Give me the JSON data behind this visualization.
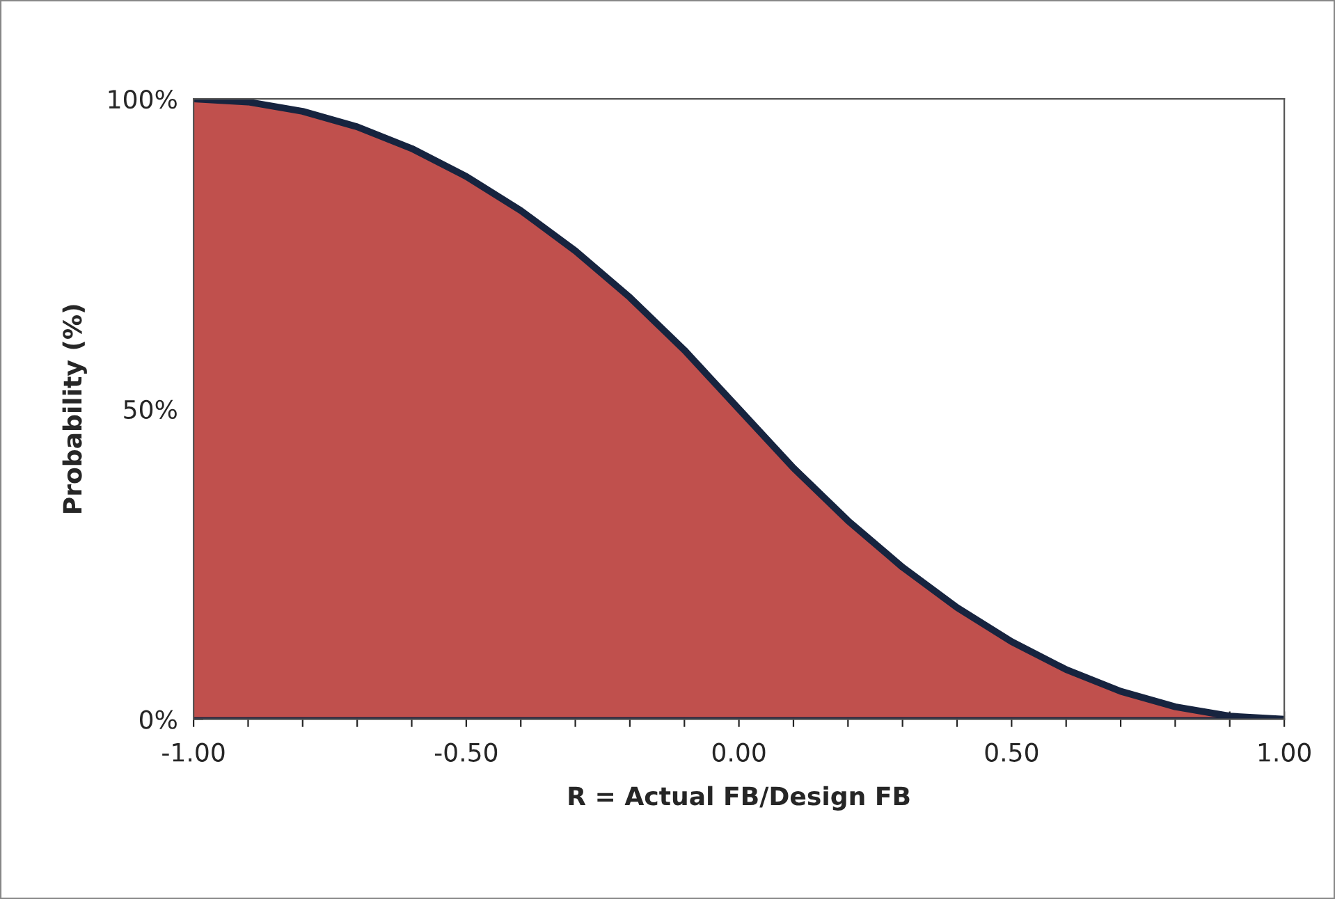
{
  "chart_data": {
    "type": "area",
    "xlabel": "R = Actual FB/Design FB",
    "ylabel": "Probability (%)",
    "x": [
      -1.0,
      -0.9,
      -0.8,
      -0.7,
      -0.6,
      -0.5,
      -0.4,
      -0.3,
      -0.2,
      -0.1,
      0.0,
      0.1,
      0.2,
      0.3,
      0.4,
      0.5,
      0.6,
      0.7,
      0.8,
      0.9,
      1.0
    ],
    "series": [
      {
        "color": "#c0504d",
        "values": [
          100,
          99.5,
          98,
          95.5,
          92,
          87.5,
          82,
          75.5,
          68,
          59.5,
          50,
          40.5,
          32,
          24.5,
          18,
          12.5,
          8,
          4.5,
          2,
          0.5,
          0
        ]
      }
    ],
    "xlim": [
      -1.0,
      1.0
    ],
    "xticks": [
      {
        "value": -1.0,
        "label": "-1.00"
      },
      {
        "value": -0.9,
        "label": null
      },
      {
        "value": -0.8,
        "label": null
      },
      {
        "value": -0.7,
        "label": null
      },
      {
        "value": -0.6,
        "label": null
      },
      {
        "value": -0.5,
        "label": "-0.50"
      },
      {
        "value": -0.4,
        "label": null
      },
      {
        "value": -0.3,
        "label": null
      },
      {
        "value": -0.2,
        "label": null
      },
      {
        "value": -0.1,
        "label": null
      },
      {
        "value": 0.0,
        "label": "0.00"
      },
      {
        "value": 0.1,
        "label": null
      },
      {
        "value": 0.2,
        "label": null
      },
      {
        "value": 0.3,
        "label": null
      },
      {
        "value": 0.4,
        "label": null
      },
      {
        "value": 0.5,
        "label": "0.50"
      },
      {
        "value": 0.6,
        "label": null
      },
      {
        "value": 0.7,
        "label": null
      },
      {
        "value": 0.8,
        "label": null
      },
      {
        "value": 0.9,
        "label": null
      },
      {
        "value": 1.0,
        "label": "1.00"
      }
    ],
    "ylim": [
      0,
      100
    ],
    "yticks": [
      {
        "value": 0,
        "label": "0%"
      },
      {
        "value": 50,
        "label": "50%"
      },
      {
        "value": 100,
        "label": "100%"
      }
    ],
    "grid": false,
    "legend": false
  }
}
